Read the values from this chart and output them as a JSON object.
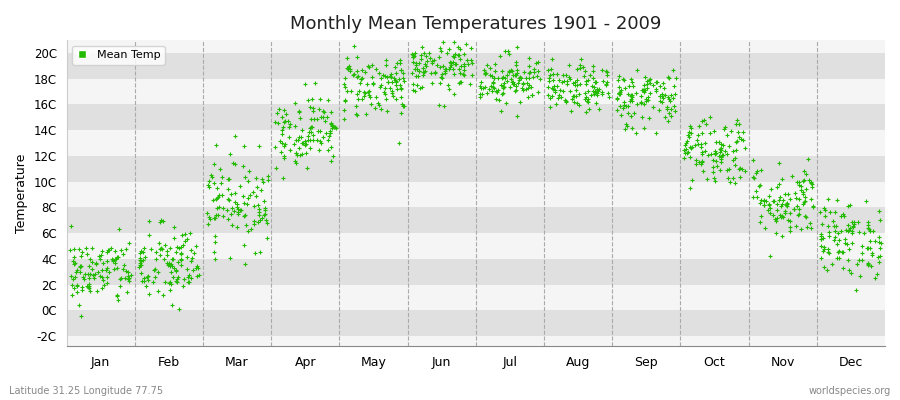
{
  "title": "Monthly Mean Temperatures 1901 - 2009",
  "ylabel": "Temperature",
  "yticks": [
    -2,
    0,
    2,
    4,
    6,
    8,
    10,
    12,
    14,
    16,
    18,
    20
  ],
  "ytick_labels": [
    "-2C",
    "0C",
    "2C",
    "4C",
    "6C",
    "8C",
    "10C",
    "12C",
    "14C",
    "16C",
    "18C",
    "20C"
  ],
  "ylim": [
    -2.8,
    21.0
  ],
  "months": [
    "Jan",
    "Feb",
    "Mar",
    "Apr",
    "May",
    "Jun",
    "Jul",
    "Aug",
    "Sep",
    "Oct",
    "Nov",
    "Dec"
  ],
  "month_tick_positions": [
    0.5,
    1.5,
    2.5,
    3.5,
    4.5,
    5.5,
    6.5,
    7.5,
    8.5,
    9.5,
    10.5,
    11.5
  ],
  "dot_color": "#22bb00",
  "bg_color": "#ffffff",
  "plot_bg_color": "#f5f5f5",
  "band_light": "#ececec",
  "band_dark": "#e0e0e0",
  "grid_color": "#aaaaaa",
  "legend_label": "Mean Temp",
  "footer_left": "Latitude 31.25 Longitude 77.75",
  "footer_right": "worldspecies.org",
  "month_means": [
    3.0,
    3.5,
    8.5,
    14.0,
    17.5,
    18.8,
    18.0,
    17.2,
    16.5,
    12.5,
    8.5,
    5.5
  ],
  "month_stds": [
    1.3,
    1.6,
    1.8,
    1.4,
    1.3,
    1.0,
    1.0,
    0.9,
    1.2,
    1.4,
    1.5,
    1.5
  ],
  "n_years": 109,
  "seed": 42
}
